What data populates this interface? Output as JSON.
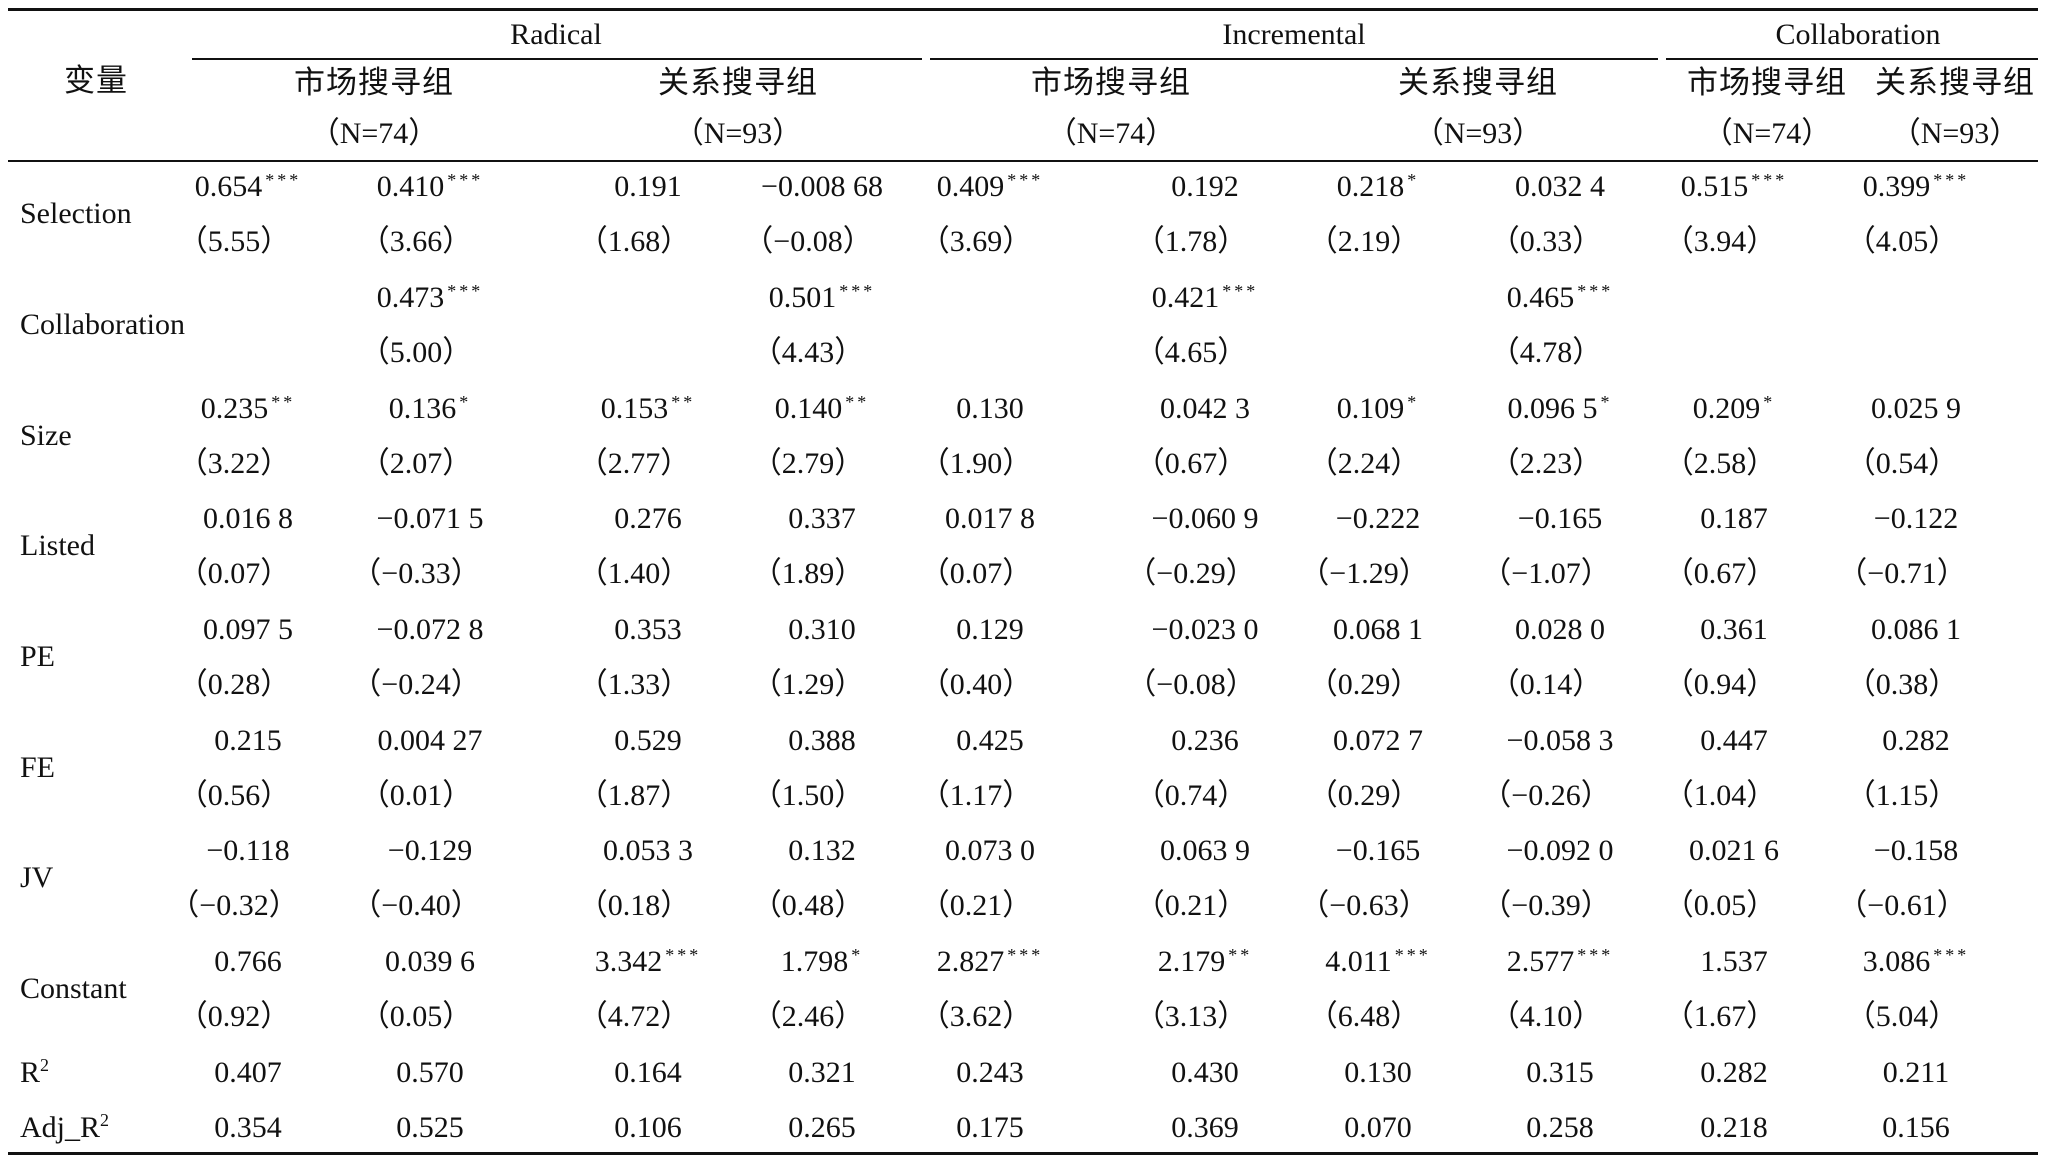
{
  "header": {
    "var_label": "变量",
    "groups": [
      {
        "label": "Radical"
      },
      {
        "label": "Incremental"
      },
      {
        "label": "Collaboration"
      }
    ],
    "subgroups": [
      {
        "label": "市场搜寻组",
        "n": "（N=74）"
      },
      {
        "label": "关系搜寻组",
        "n": "（N=93）"
      },
      {
        "label": "市场搜寻组",
        "n": "（N=74）"
      },
      {
        "label": "关系搜寻组",
        "n": "（N=93）"
      },
      {
        "label": "市场搜寻组",
        "n": "（N=74）"
      },
      {
        "label": "关系搜寻组",
        "n": "（N=93）"
      }
    ]
  },
  "rows": [
    {
      "label": "Selection",
      "coef": [
        [
          "0.654",
          "***"
        ],
        [
          "0.410",
          "***"
        ],
        [
          "0.191",
          ""
        ],
        [
          "−0.008 68",
          ""
        ],
        [
          "0.409",
          "***"
        ],
        [
          "0.192",
          ""
        ],
        [
          "0.218",
          "*"
        ],
        [
          "0.032 4",
          ""
        ],
        [
          "0.515",
          "***"
        ],
        [
          "0.399",
          "***"
        ]
      ],
      "t": [
        "（5.55）",
        "（3.66）",
        "（1.68）",
        "（−0.08）",
        "（3.69）",
        "（1.78）",
        "（2.19）",
        "（0.33）",
        "（3.94）",
        "（4.05）"
      ]
    },
    {
      "label": "Collaboration",
      "coef": [
        [
          "",
          ""
        ],
        [
          "0.473",
          "***"
        ],
        [
          "",
          ""
        ],
        [
          "0.501",
          "***"
        ],
        [
          "",
          ""
        ],
        [
          "0.421",
          "***"
        ],
        [
          "",
          ""
        ],
        [
          "0.465",
          "***"
        ],
        [
          "",
          ""
        ],
        [
          "",
          ""
        ]
      ],
      "t": [
        "",
        "（5.00）",
        "",
        "（4.43）",
        "",
        "（4.65）",
        "",
        "（4.78）",
        "",
        ""
      ]
    },
    {
      "label": "Size",
      "coef": [
        [
          "0.235",
          "**"
        ],
        [
          "0.136",
          "*"
        ],
        [
          "0.153",
          "**"
        ],
        [
          "0.140",
          "**"
        ],
        [
          "0.130",
          ""
        ],
        [
          "0.042 3",
          ""
        ],
        [
          "0.109",
          "*"
        ],
        [
          "0.096 5",
          "*"
        ],
        [
          "0.209",
          "*"
        ],
        [
          "0.025 9",
          ""
        ]
      ],
      "t": [
        "（3.22）",
        "（2.07）",
        "（2.77）",
        "（2.79）",
        "（1.90）",
        "（0.67）",
        "（2.24）",
        "（2.23）",
        "（2.58）",
        "（0.54）"
      ]
    },
    {
      "label": "Listed",
      "coef": [
        [
          "0.016 8",
          ""
        ],
        [
          "−0.071 5",
          ""
        ],
        [
          "0.276",
          ""
        ],
        [
          "0.337",
          ""
        ],
        [
          "0.017 8",
          ""
        ],
        [
          "−0.060 9",
          ""
        ],
        [
          "−0.222",
          ""
        ],
        [
          "−0.165",
          ""
        ],
        [
          "0.187",
          ""
        ],
        [
          "−0.122",
          ""
        ]
      ],
      "t": [
        "（0.07）",
        "（−0.33）",
        "（1.40）",
        "（1.89）",
        "（0.07）",
        "（−0.29）",
        "（−1.29）",
        "（−1.07）",
        "（0.67）",
        "（−0.71）"
      ]
    },
    {
      "label": "PE",
      "coef": [
        [
          "0.097 5",
          ""
        ],
        [
          "−0.072 8",
          ""
        ],
        [
          "0.353",
          ""
        ],
        [
          "0.310",
          ""
        ],
        [
          "0.129",
          ""
        ],
        [
          "−0.023 0",
          ""
        ],
        [
          "0.068 1",
          ""
        ],
        [
          "0.028 0",
          ""
        ],
        [
          "0.361",
          ""
        ],
        [
          "0.086 1",
          ""
        ]
      ],
      "t": [
        "（0.28）",
        "（−0.24）",
        "（1.33）",
        "（1.29）",
        "（0.40）",
        "（−0.08）",
        "（0.29）",
        "（0.14）",
        "（0.94）",
        "（0.38）"
      ]
    },
    {
      "label": "FE",
      "coef": [
        [
          "0.215",
          ""
        ],
        [
          "0.004 27",
          ""
        ],
        [
          "0.529",
          ""
        ],
        [
          "0.388",
          ""
        ],
        [
          "0.425",
          ""
        ],
        [
          "0.236",
          ""
        ],
        [
          "0.072 7",
          ""
        ],
        [
          "−0.058 3",
          ""
        ],
        [
          "0.447",
          ""
        ],
        [
          "0.282",
          ""
        ]
      ],
      "t": [
        "（0.56）",
        "（0.01）",
        "（1.87）",
        "（1.50）",
        "（1.17）",
        "（0.74）",
        "（0.29）",
        "（−0.26）",
        "（1.04）",
        "（1.15）"
      ]
    },
    {
      "label": "JV",
      "coef": [
        [
          "−0.118",
          ""
        ],
        [
          "−0.129",
          ""
        ],
        [
          "0.053 3",
          ""
        ],
        [
          "0.132",
          ""
        ],
        [
          "0.073 0",
          ""
        ],
        [
          "0.063 9",
          ""
        ],
        [
          "−0.165",
          ""
        ],
        [
          "−0.092 0",
          ""
        ],
        [
          "0.021 6",
          ""
        ],
        [
          "−0.158",
          ""
        ]
      ],
      "t": [
        "（−0.32）",
        "（−0.40）",
        "（0.18）",
        "（0.48）",
        "（0.21）",
        "（0.21）",
        "（−0.63）",
        "（−0.39）",
        "（0.05）",
        "（−0.61）"
      ]
    },
    {
      "label": "Constant",
      "coef": [
        [
          "0.766",
          ""
        ],
        [
          "0.039 6",
          ""
        ],
        [
          "3.342",
          "***"
        ],
        [
          "1.798",
          "*"
        ],
        [
          "2.827",
          "***"
        ],
        [
          "2.179",
          "**"
        ],
        [
          "4.011",
          "***"
        ],
        [
          "2.577",
          "***"
        ],
        [
          "1.537",
          ""
        ],
        [
          "3.086",
          "***"
        ]
      ],
      "t": [
        "（0.92）",
        "（0.05）",
        "（4.72）",
        "（2.46）",
        "（3.62）",
        "（3.13）",
        "（6.48）",
        "（4.10）",
        "（1.67）",
        "（5.04）"
      ]
    }
  ],
  "stats": [
    {
      "label": "R",
      "sup": "2",
      "values": [
        "0.407",
        "0.570",
        "0.164",
        "0.321",
        "0.243",
        "0.430",
        "0.130",
        "0.315",
        "0.282",
        "0.211"
      ]
    },
    {
      "label": "Adj_R",
      "sup": "2",
      "values": [
        "0.354",
        "0.525",
        "0.106",
        "0.265",
        "0.175",
        "0.369",
        "0.070",
        "0.258",
        "0.218",
        "0.156"
      ]
    }
  ]
}
